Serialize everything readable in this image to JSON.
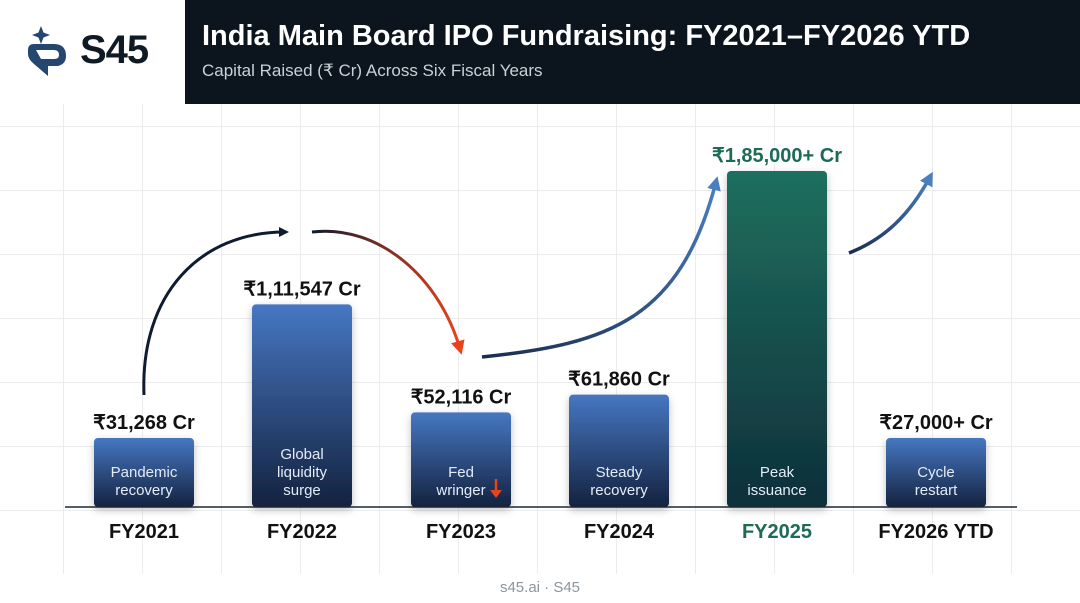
{
  "brand": {
    "name": "S45"
  },
  "header": {
    "title": "India Main Board IPO Fundraising: FY2021–FY2026 YTD",
    "subtitle": "Capital Raised (₹ Cr) Across Six Fiscal Years"
  },
  "footer": {
    "text": "s45.ai · S45"
  },
  "colors": {
    "bar_blue_top": "#4677c2",
    "bar_blue_bottom": "#14223f",
    "bar_green_top": "#1f6f5e",
    "bar_green_bottom": "#0e2f3a",
    "accent_green": "#1d6a55",
    "arrow_dark": "#0f1b2e",
    "arrow_red": "#e8431c",
    "arrow_blue": "#4a76b5"
  },
  "chart_data": {
    "type": "bar",
    "title": "India Main Board IPO Fundraising: FY2021–FY2026 YTD",
    "subtitle": "Capital Raised (₹ Cr) Across Six Fiscal Years",
    "xlabel": "",
    "ylabel": "",
    "ylim": [
      0,
      200000
    ],
    "grid": true,
    "categories": [
      "FY2021",
      "FY2022",
      "FY2023",
      "FY2024",
      "FY2025",
      "FY2026 YTD"
    ],
    "values": [
      31268,
      111547,
      52116,
      61860,
      185000,
      27000
    ],
    "value_labels": [
      "₹31,268 Cr",
      "₹1,11,547 Cr",
      "₹52,116 Cr",
      "₹61,860 Cr",
      "₹1,85,000+ Cr",
      "₹27,000+ Cr"
    ],
    "annotations": [
      [
        "Pandemic",
        "recovery"
      ],
      [
        "Global",
        "liquidity",
        "surge"
      ],
      [
        "Fed",
        "wringer"
      ],
      [
        "Steady",
        "recovery"
      ],
      [
        "Peak",
        "issuance"
      ],
      [
        "Cycle",
        "restart"
      ]
    ],
    "highlight_index": 4
  }
}
